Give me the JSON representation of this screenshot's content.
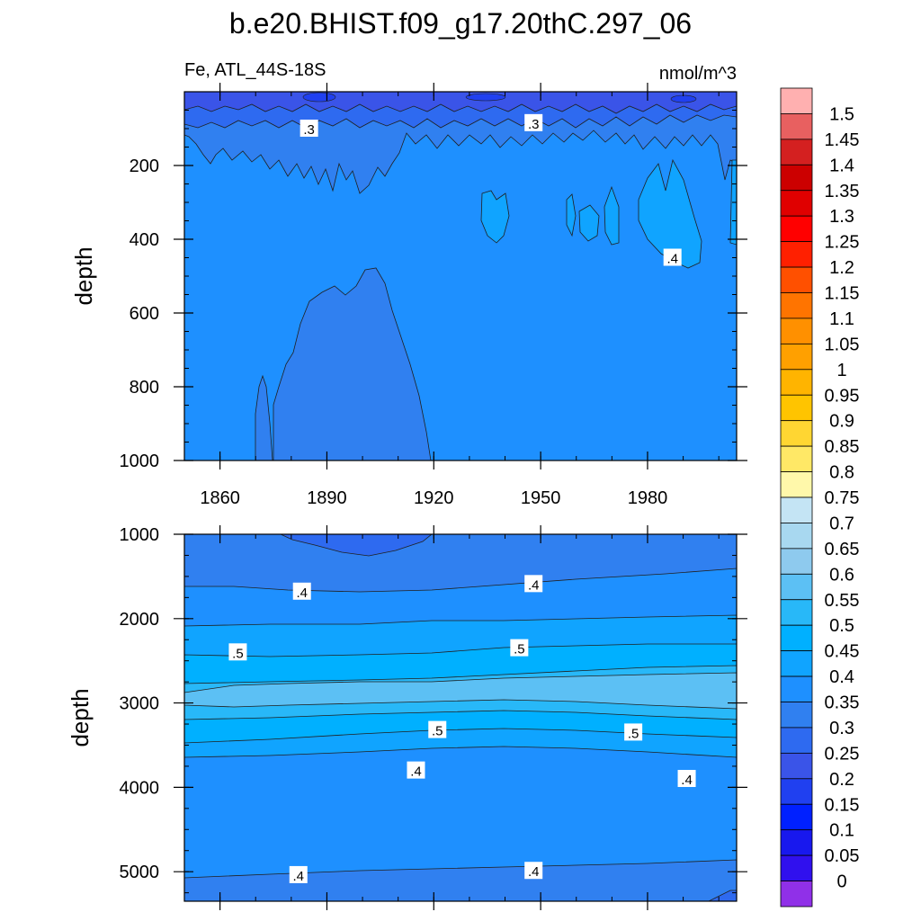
{
  "title": "b.e20.BHIST.f09_g17.20thC.297_06",
  "chart_data": [
    {
      "type": "contour",
      "panel": "upper",
      "title": "b.e20.BHIST.f09_g17.20thC.297_06",
      "left_string": "Fe, ATL_44S-18S",
      "right_string": "nmol/m^3",
      "xlabel": "",
      "ylabel": "depth",
      "xlim": [
        1850,
        2005
      ],
      "ylim": [
        0,
        1000
      ],
      "y_reversed": true,
      "x_ticks": [
        1860,
        1890,
        1920,
        1950,
        1980
      ],
      "x_tick_labels": [
        "1860",
        "1890",
        "1920",
        "1950",
        "1980"
      ],
      "y_ticks": [
        200,
        400,
        600,
        800,
        1000
      ],
      "y_tick_labels": [
        "200",
        "400",
        "600",
        "800",
        "1000"
      ],
      "contour_labels": [
        {
          "text": ".3",
          "x": 1885,
          "y": 100
        },
        {
          "text": ".3",
          "x": 1948,
          "y": 85
        },
        {
          "text": ".4",
          "x": 1987,
          "y": 450
        }
      ],
      "field_description": "Background ~0.35; near-surface 0-100 m 0.25-0.3; lens ~0.3 from 1875-1919 below 500 m; small 0.4 patches near 1935, 1958-1973, 1978-1993 at 200-450 m"
    },
    {
      "type": "contour",
      "panel": "lower",
      "xlabel": "",
      "ylabel": "depth",
      "xlim": [
        1850,
        2005
      ],
      "ylim": [
        1000,
        5350
      ],
      "y_reversed": true,
      "x_ticks": [
        1860,
        1890,
        1920,
        1950,
        1980
      ],
      "y_ticks": [
        1000,
        2000,
        3000,
        4000,
        5000
      ],
      "y_tick_labels": [
        "1000",
        "2000",
        "3000",
        "4000",
        "5000"
      ],
      "contour_labels": [
        {
          "text": ".4",
          "x": 1883,
          "y": 1680
        },
        {
          "text": ".4",
          "x": 1948,
          "y": 1590
        },
        {
          "text": ".5",
          "x": 1865,
          "y": 2400
        },
        {
          "text": ".5",
          "x": 1944,
          "y": 2350
        },
        {
          "text": ".5",
          "x": 1921,
          "y": 3320
        },
        {
          "text": ".5",
          "x": 1976,
          "y": 3350
        },
        {
          "text": ".4",
          "x": 1915,
          "y": 3800
        },
        {
          "text": ".4",
          "x": 1991,
          "y": 3900
        },
        {
          "text": ".4",
          "x": 1882,
          "y": 5040
        },
        {
          "text": ".4",
          "x": 1948,
          "y": 4990
        }
      ],
      "field_description": "Layered: ~0.35 at 1000-1600 m, 0.4-0.45 to 2100 m, 0.5-0.55 band 2100-2500, max 0.6 core 2600-3000 m, decreasing to 0.4 below 3800 m, 0.35 bottom"
    }
  ],
  "colorbar": {
    "labels": [
      "1.5",
      "1.45",
      "1.4",
      "1.35",
      "1.3",
      "1.25",
      "1.2",
      "1.15",
      "1.1",
      "1.05",
      "1",
      "0.95",
      "0.9",
      "0.85",
      "0.8",
      "0.75",
      "0.7",
      "0.65",
      "0.6",
      "0.55",
      "0.5",
      "0.45",
      "0.4",
      "0.35",
      "0.3",
      "0.25",
      "0.2",
      "0.15",
      "0.1",
      "0.05",
      "0"
    ],
    "colors": [
      "#ffb0b0",
      "#e86060",
      "#d42020",
      "#cc0000",
      "#e00000",
      "#ff0000",
      "#ff2000",
      "#ff5000",
      "#ff7400",
      "#ff9000",
      "#ffa000",
      "#ffb400",
      "#ffc400",
      "#ffd632",
      "#ffe866",
      "#fff8aa",
      "#c4e4f4",
      "#a8d8f0",
      "#8ecaee",
      "#5cc0f4",
      "#28b8f8",
      "#00b0ff",
      "#10a4ff",
      "#1e90ff",
      "#3080f0",
      "#2e6af0",
      "#3a54e8",
      "#2040f0",
      "#0020ff",
      "#1818ee",
      "#3010ee",
      "#9030e8"
    ]
  }
}
